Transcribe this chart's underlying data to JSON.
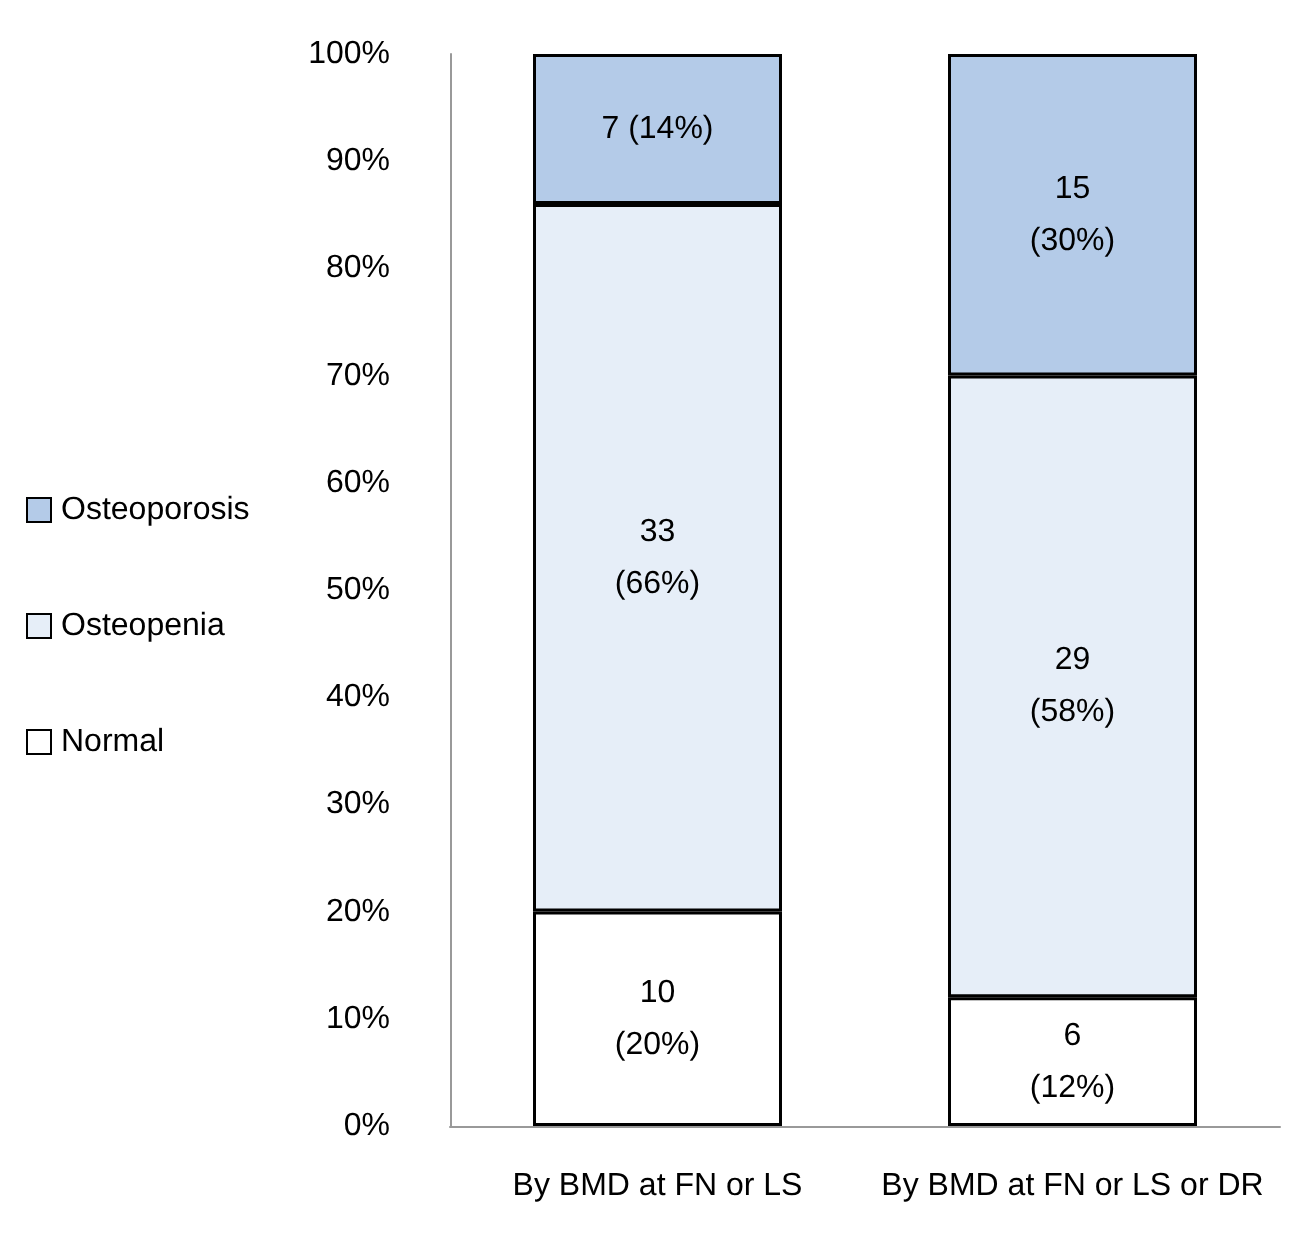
{
  "chart_data": {
    "type": "bar",
    "stacked": true,
    "categories": [
      "By BMD at FN or LS",
      "By BMD at FN or LS or DR"
    ],
    "series": [
      {
        "name": "Normal",
        "color": "#ffffff",
        "values": [
          20,
          12
        ],
        "value_labels": [
          "10\n(20%)",
          "6\n(12%)"
        ]
      },
      {
        "name": "Osteopenia",
        "color": "#e6eef8",
        "values": [
          66,
          58
        ],
        "value_labels": [
          "33\n(66%)",
          "29\n(58%)"
        ]
      },
      {
        "name": "Osteoporosis",
        "color": "#b4cbe8",
        "values": [
          14,
          30
        ],
        "value_labels": [
          "7 (14%)",
          "15\n(30%)"
        ]
      }
    ],
    "ylim": [
      0,
      100
    ],
    "yticks": [
      {
        "value": 0,
        "label": "0%"
      },
      {
        "value": 10,
        "label": "10%"
      },
      {
        "value": 20,
        "label": "20%"
      },
      {
        "value": 30,
        "label": "30%"
      },
      {
        "value": 40,
        "label": "40%"
      },
      {
        "value": 50,
        "label": "50%"
      },
      {
        "value": 60,
        "label": "60%"
      },
      {
        "value": 70,
        "label": "70%"
      },
      {
        "value": 80,
        "label": "80%"
      },
      {
        "value": 90,
        "label": "90%"
      },
      {
        "value": 100,
        "label": "100%"
      }
    ],
    "grid": false,
    "legend": "left"
  }
}
